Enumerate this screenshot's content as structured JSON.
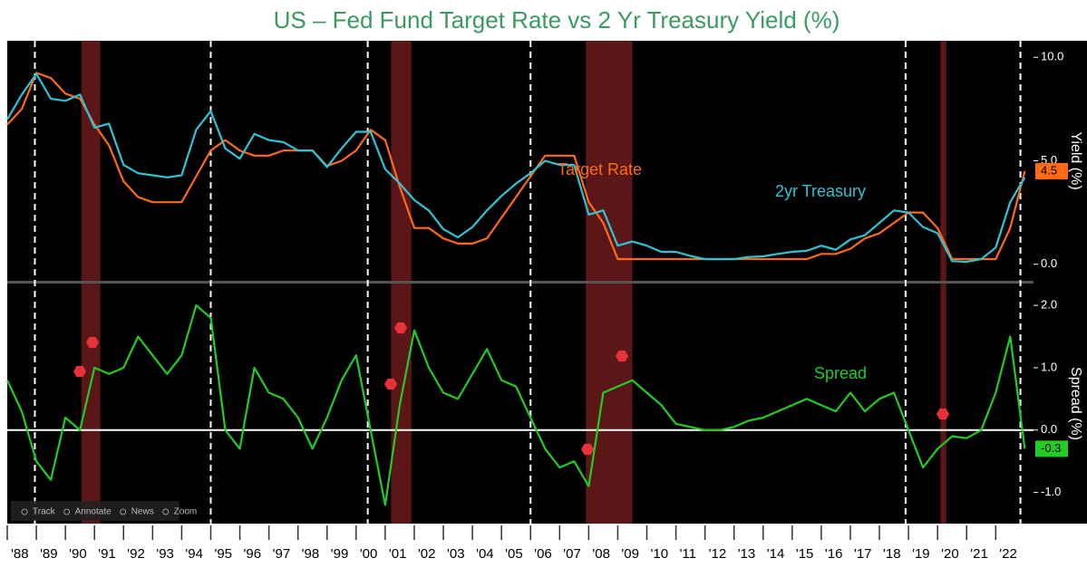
{
  "chart_data": [
    {
      "type": "line",
      "title": "US – Fed Fund Target Rate vs 2 Yr Treasury Yield (%)",
      "ylabel": "Yield (%)",
      "x": [
        1988,
        1988.5,
        1989,
        1989.5,
        1990,
        1990.5,
        1991,
        1991.5,
        1992,
        1992.5,
        1993,
        1993.5,
        1994,
        1994.5,
        1995,
        1995.5,
        1996,
        1996.5,
        1997,
        1997.5,
        1998,
        1998.5,
        1999,
        1999.5,
        2000,
        2000.5,
        2001,
        2001.5,
        2002,
        2002.5,
        2003,
        2003.5,
        2004,
        2004.5,
        2005,
        2005.5,
        2006,
        2006.5,
        2007,
        2007.5,
        2008,
        2008.5,
        2009,
        2009.5,
        2010,
        2010.5,
        2011,
        2011.5,
        2012,
        2012.5,
        2013,
        2013.5,
        2014,
        2014.5,
        2015,
        2015.5,
        2016,
        2016.5,
        2017,
        2017.5,
        2018,
        2018.5,
        2019,
        2019.5,
        2020,
        2020.5,
        2021,
        2021.5,
        2022,
        2022.5,
        2023
      ],
      "series": [
        {
          "name": "Target Rate",
          "color": "#ff6a13",
          "values": [
            6.75,
            7.5,
            9.25,
            9.0,
            8.25,
            8.0,
            6.75,
            5.75,
            4.0,
            3.25,
            3.0,
            3.0,
            3.0,
            4.25,
            5.5,
            6.0,
            5.5,
            5.25,
            5.25,
            5.5,
            5.5,
            5.5,
            4.75,
            5.0,
            5.5,
            6.5,
            6.0,
            3.75,
            1.75,
            1.75,
            1.25,
            1.0,
            1.0,
            1.25,
            2.25,
            3.25,
            4.25,
            5.25,
            5.25,
            5.25,
            3.0,
            2.0,
            0.25,
            0.25,
            0.25,
            0.25,
            0.25,
            0.25,
            0.25,
            0.25,
            0.25,
            0.25,
            0.25,
            0.25,
            0.25,
            0.25,
            0.5,
            0.5,
            0.75,
            1.25,
            1.5,
            2.0,
            2.5,
            2.5,
            1.75,
            0.25,
            0.25,
            0.25,
            0.25,
            1.75,
            4.5
          ],
          "value_labels_last": "4.5"
        },
        {
          "name": "2yr Treasury",
          "color": "#2ec4d6",
          "values": [
            7.0,
            8.2,
            9.2,
            8.0,
            7.9,
            8.2,
            6.6,
            6.8,
            4.8,
            4.4,
            4.3,
            4.2,
            4.3,
            6.5,
            7.4,
            5.6,
            5.1,
            6.3,
            6.0,
            5.9,
            5.5,
            5.5,
            4.7,
            5.6,
            6.4,
            6.4,
            4.6,
            3.9,
            3.1,
            2.6,
            1.7,
            1.3,
            1.8,
            2.6,
            3.3,
            3.9,
            4.4,
            5.0,
            4.8,
            4.8,
            2.4,
            2.6,
            0.9,
            1.1,
            0.9,
            0.6,
            0.6,
            0.4,
            0.25,
            0.25,
            0.25,
            0.35,
            0.38,
            0.5,
            0.6,
            0.65,
            0.9,
            0.7,
            1.2,
            1.4,
            2.0,
            2.6,
            2.5,
            1.8,
            1.5,
            0.15,
            0.12,
            0.25,
            0.8,
            3.0,
            4.2
          ]
        }
      ],
      "ylim": [
        -0.8,
        10.8
      ],
      "yticks": [
        {
          "value": 0,
          "label": "0.0"
        },
        {
          "value": 5,
          "label": "5.0"
        },
        {
          "value": 10,
          "label": "10.0"
        }
      ]
    },
    {
      "type": "line",
      "ylabel": "Spread (%)",
      "x": [
        1988,
        1988.5,
        1989,
        1989.5,
        1990,
        1990.5,
        1991,
        1991.5,
        1992,
        1992.5,
        1993,
        1993.5,
        1994,
        1994.5,
        1995,
        1995.5,
        1996,
        1996.5,
        1997,
        1997.5,
        1998,
        1998.5,
        1999,
        1999.5,
        2000,
        2000.5,
        2001,
        2001.5,
        2002,
        2002.5,
        2003,
        2003.5,
        2004,
        2004.5,
        2005,
        2005.5,
        2006,
        2006.5,
        2007,
        2007.5,
        2008,
        2008.5,
        2009,
        2009.5,
        2010,
        2010.5,
        2011,
        2011.5,
        2012,
        2012.5,
        2013,
        2013.5,
        2014,
        2014.5,
        2015,
        2015.5,
        2016,
        2016.5,
        2017,
        2017.5,
        2018,
        2018.5,
        2019,
        2019.5,
        2020,
        2020.5,
        2021,
        2021.5,
        2022,
        2022.5,
        2023
      ],
      "series": [
        {
          "name": "Spread",
          "color": "#22cc22",
          "values": [
            0.8,
            0.3,
            -0.5,
            -0.8,
            0.2,
            0.0,
            1.0,
            0.9,
            1.0,
            1.5,
            1.2,
            0.9,
            1.2,
            2.0,
            1.8,
            0.0,
            -0.3,
            1.0,
            0.6,
            0.5,
            0.2,
            -0.3,
            0.2,
            0.8,
            1.2,
            0.0,
            -1.2,
            0.4,
            1.6,
            1.0,
            0.6,
            0.5,
            0.9,
            1.3,
            0.8,
            0.7,
            0.2,
            -0.3,
            -0.6,
            -0.5,
            -0.9,
            0.6,
            0.7,
            0.8,
            0.6,
            0.4,
            0.1,
            0.05,
            0.0,
            0.0,
            0.05,
            0.15,
            0.2,
            0.3,
            0.4,
            0.5,
            0.4,
            0.3,
            0.6,
            0.3,
            0.5,
            0.6,
            0.0,
            -0.6,
            -0.3,
            -0.1,
            -0.13,
            0.0,
            0.6,
            1.5,
            -0.3
          ]
        }
      ],
      "ylim": [
        -1.5,
        2.35
      ],
      "yticks": [
        {
          "value": -1,
          "label": "-1.0"
        },
        {
          "value": 0,
          "label": "0.0"
        },
        {
          "value": 1,
          "label": "1.0"
        },
        {
          "value": 2,
          "label": "2.0"
        }
      ],
      "xlim": [
        1988,
        2023.3
      ],
      "xticks": [
        {
          "value": 1988,
          "label": "'88"
        },
        {
          "value": 1989,
          "label": "'89"
        },
        {
          "value": 1990,
          "label": "'90"
        },
        {
          "value": 1991,
          "label": "'91"
        },
        {
          "value": 1992,
          "label": "'92"
        },
        {
          "value": 1993,
          "label": "'93"
        },
        {
          "value": 1994,
          "label": "'94"
        },
        {
          "value": 1995,
          "label": "'95"
        },
        {
          "value": 1996,
          "label": "'96"
        },
        {
          "value": 1997,
          "label": "'97"
        },
        {
          "value": 1998,
          "label": "'98"
        },
        {
          "value": 1999,
          "label": "'99"
        },
        {
          "value": 2000,
          "label": "'00"
        },
        {
          "value": 2001,
          "label": "'01"
        },
        {
          "value": 2002,
          "label": "'02"
        },
        {
          "value": 2003,
          "label": "'03"
        },
        {
          "value": 2004,
          "label": "'04"
        },
        {
          "value": 2005,
          "label": "'05"
        },
        {
          "value": 2006,
          "label": "'06"
        },
        {
          "value": 2007,
          "label": "'07"
        },
        {
          "value": 2008,
          "label": "'08"
        },
        {
          "value": 2009,
          "label": "'09"
        },
        {
          "value": 2010,
          "label": "'10"
        },
        {
          "value": 2011,
          "label": "'11"
        },
        {
          "value": 2012,
          "label": "'12"
        },
        {
          "value": 2013,
          "label": "'13"
        },
        {
          "value": 2014,
          "label": "'14"
        },
        {
          "value": 2015,
          "label": "'15"
        },
        {
          "value": 2016,
          "label": "'16"
        },
        {
          "value": 2017,
          "label": "'17"
        },
        {
          "value": 2018,
          "label": "'18"
        },
        {
          "value": 2019,
          "label": "'19"
        },
        {
          "value": 2020,
          "label": "'20"
        },
        {
          "value": 2021,
          "label": "'21"
        },
        {
          "value": 2022,
          "label": "'22"
        }
      ]
    }
  ],
  "recessions": [
    [
      1990.55,
      1991.2
    ],
    [
      2001.2,
      2001.9
    ],
    [
      2007.9,
      2009.5
    ],
    [
      2020.1,
      2020.3
    ]
  ],
  "inversion_lines": [
    1988.95,
    1995.0,
    2000.4,
    2006.0,
    2018.9,
    2022.85
  ],
  "toolbar": [
    "Track",
    "Annotate",
    "News",
    "Zoom"
  ]
}
